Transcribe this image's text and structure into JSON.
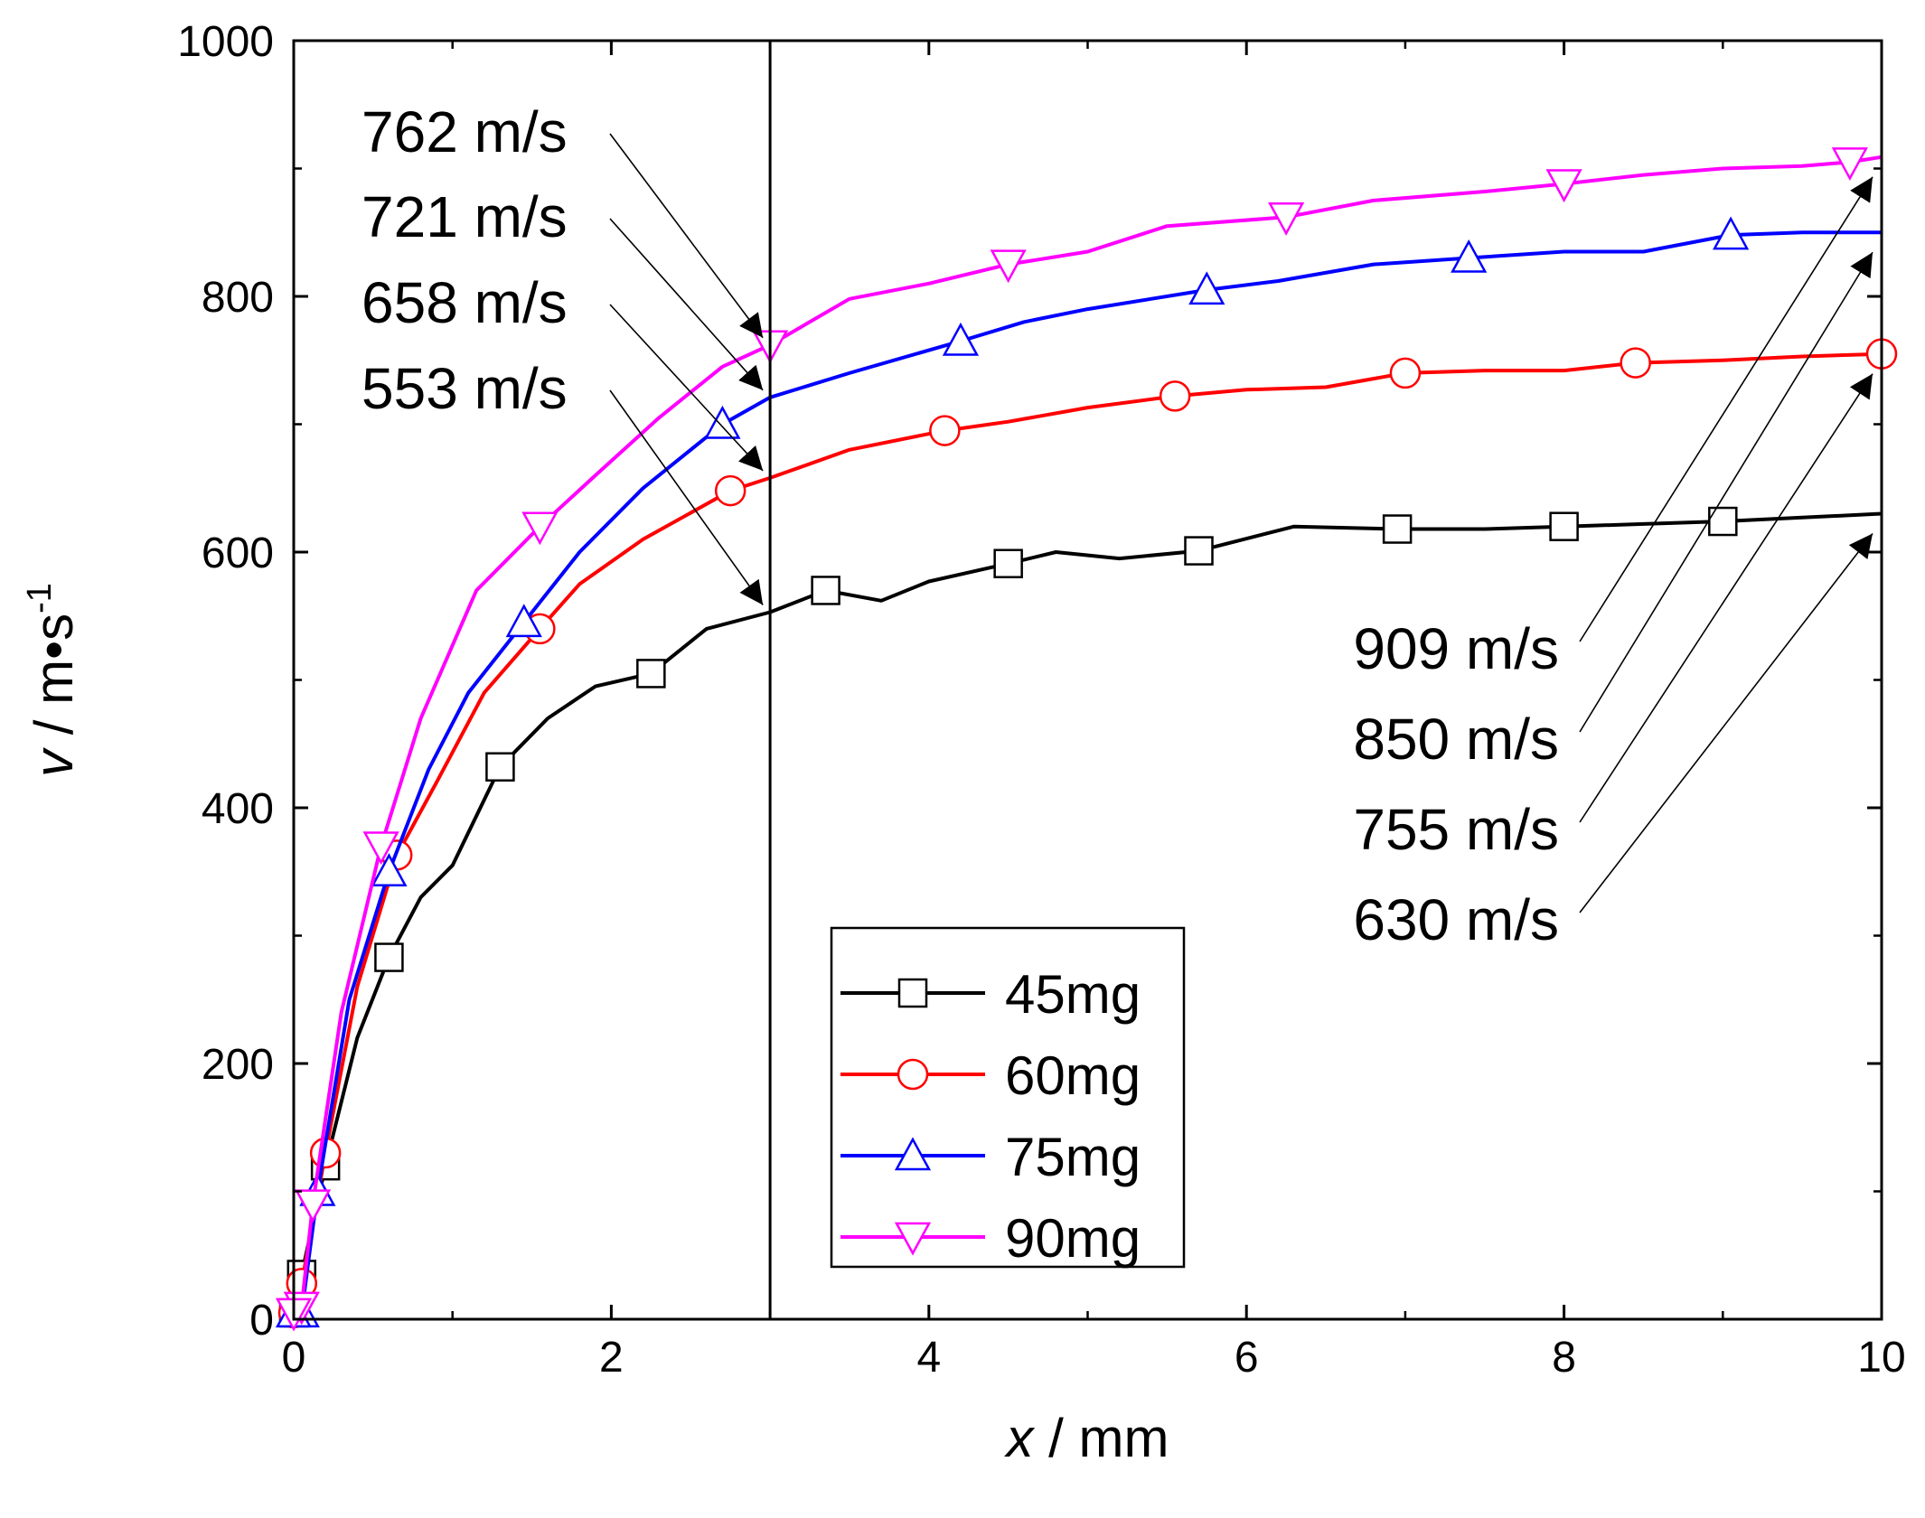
{
  "chart_data": {
    "type": "line",
    "title": "",
    "xlabel_var": "x",
    "xlabel_unit": " / mm",
    "ylabel_var": "v",
    "ylabel_unit": " / m•s",
    "ylabel_sup": "-1",
    "xlim": [
      0,
      10
    ],
    "ylim": [
      0,
      1000
    ],
    "xticks": [
      0,
      2,
      4,
      6,
      8,
      10
    ],
    "xtick_labels": [
      "0",
      "2",
      "4",
      "6",
      "8",
      "10"
    ],
    "yticks": [
      0,
      200,
      400,
      600,
      800,
      1000
    ],
    "ytick_labels": [
      "0",
      "200",
      "400",
      "600",
      "800",
      "1000"
    ],
    "grid": false,
    "legend_position": "bottom-center",
    "vertical_line_x": 3,
    "series": [
      {
        "name": "45mg",
        "color": "#000000",
        "marker": "square",
        "x": [
          0,
          0.05,
          0.2,
          0.4,
          0.6,
          0.8,
          1.0,
          1.3,
          1.6,
          1.9,
          2.25,
          2.6,
          3.0,
          3.35,
          3.7,
          4.0,
          4.5,
          4.8,
          5.2,
          5.7,
          6.3,
          6.95,
          7.5,
          8.0,
          8.5,
          9.0,
          9.5,
          10.0
        ],
        "y": [
          0,
          35,
          120,
          220,
          283,
          330,
          355,
          432,
          470,
          495,
          505,
          540,
          553,
          570,
          562,
          577,
          591,
          600,
          595,
          601,
          620,
          618,
          618,
          620,
          622,
          624,
          627,
          630
        ]
      },
      {
        "name": "60mg",
        "color": "#ff0000",
        "marker": "circle",
        "x": [
          0,
          0.05,
          0.2,
          0.4,
          0.65,
          0.9,
          1.2,
          1.55,
          1.8,
          2.2,
          2.75,
          3.0,
          3.5,
          4.1,
          4.5,
          5.0,
          5.55,
          6.0,
          6.5,
          7.0,
          7.5,
          8.0,
          8.45,
          9.0,
          9.5,
          10.0
        ],
        "y": [
          0,
          28,
          130,
          260,
          363,
          420,
          490,
          540,
          575,
          610,
          648,
          658,
          680,
          695,
          702,
          713,
          722,
          727,
          729,
          740,
          742,
          742,
          748,
          750,
          753,
          755
        ]
      },
      {
        "name": "75mg",
        "color": "#0000ff",
        "marker": "triangle-up",
        "x": [
          0,
          0.05,
          0.15,
          0.35,
          0.6,
          0.85,
          1.1,
          1.45,
          1.8,
          2.2,
          2.7,
          3.0,
          3.5,
          4.2,
          4.6,
          5.0,
          5.75,
          6.2,
          6.8,
          7.4,
          8.0,
          8.5,
          9.05,
          9.5,
          10.0
        ],
        "y": [
          0,
          5,
          100,
          250,
          350,
          430,
          490,
          545,
          600,
          650,
          700,
          721,
          740,
          765,
          780,
          790,
          805,
          812,
          825,
          830,
          835,
          835,
          848,
          850,
          850
        ]
      },
      {
        "name": "90mg",
        "color": "#ff00ff",
        "marker": "triangle-down",
        "x": [
          0,
          0.05,
          0.12,
          0.3,
          0.55,
          0.8,
          1.15,
          1.55,
          1.9,
          2.3,
          2.7,
          3.0,
          3.5,
          4.0,
          4.5,
          5.0,
          5.5,
          6.25,
          6.8,
          7.5,
          8.0,
          8.5,
          9.0,
          9.5,
          9.8,
          10.0
        ],
        "y": [
          0,
          10,
          90,
          240,
          370,
          470,
          570,
          620,
          660,
          705,
          745,
          762,
          798,
          810,
          825,
          835,
          855,
          862,
          875,
          882,
          888,
          895,
          900,
          902,
          905,
          909
        ]
      }
    ],
    "annotations_left": [
      {
        "text": "762 m/s",
        "series": "90mg",
        "x": 3,
        "y": 762
      },
      {
        "text": "721 m/s",
        "series": "75mg",
        "x": 3,
        "y": 721
      },
      {
        "text": "658 m/s",
        "series": "60mg",
        "x": 3,
        "y": 658
      },
      {
        "text": "553 m/s",
        "series": "45mg",
        "x": 3,
        "y": 553
      }
    ],
    "annotations_right": [
      {
        "text": "909 m/s",
        "series": "90mg",
        "x": 10,
        "y": 909
      },
      {
        "text": "850 m/s",
        "series": "75mg",
        "x": 10,
        "y": 850
      },
      {
        "text": "755 m/s",
        "series": "60mg",
        "x": 10,
        "y": 755
      },
      {
        "text": "630 m/s",
        "series": "45mg",
        "x": 10,
        "y": 630
      }
    ]
  }
}
